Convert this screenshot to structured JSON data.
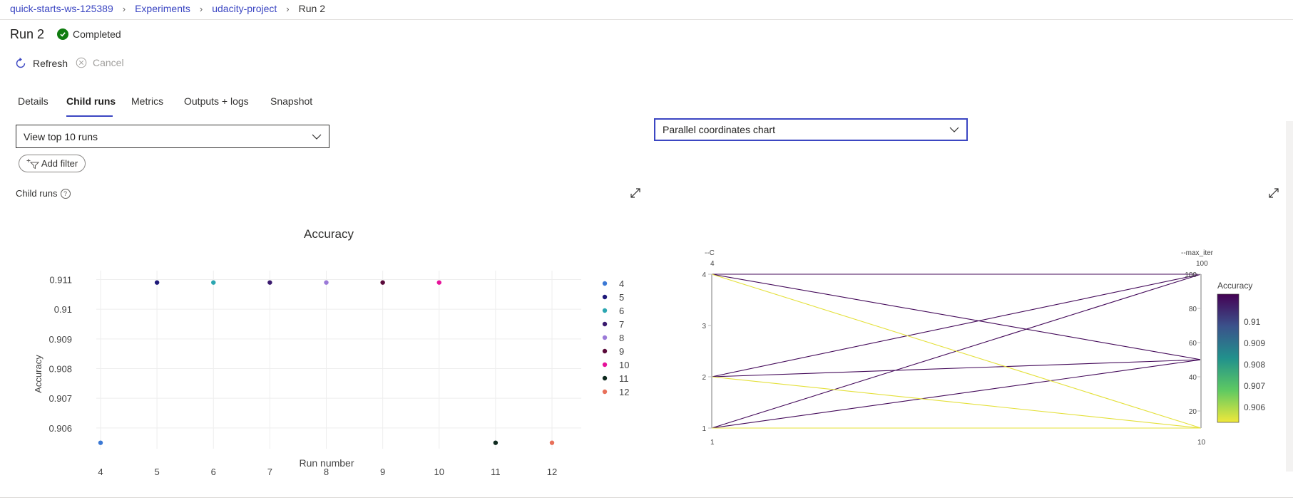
{
  "breadcrumb": {
    "items": [
      "quick-starts-ws-125389",
      "Experiments",
      "udacity-project"
    ],
    "current": "Run 2"
  },
  "run": {
    "title": "Run 2",
    "status": "Completed"
  },
  "commands": {
    "refresh": "Refresh",
    "cancel": "Cancel"
  },
  "tabs": [
    {
      "label": "Details"
    },
    {
      "label": "Child runs",
      "active": true
    },
    {
      "label": "Metrics"
    },
    {
      "label": "Outputs + logs"
    },
    {
      "label": "Snapshot"
    }
  ],
  "run_filter": {
    "selected": "View top 10 runs"
  },
  "chart_type_select": {
    "selected": "Parallel coordinates chart"
  },
  "add_filter_label": "Add filter",
  "child_runs_label": "Child runs",
  "help_glyph": "?",
  "colors": {
    "accent": "#3b46c2",
    "success": "#107c10"
  },
  "chart_data": [
    {
      "type": "scatter",
      "title": "Accuracy",
      "xlabel": "Run number",
      "ylabel": "Accuracy",
      "categories": [
        "4",
        "5",
        "6",
        "7",
        "8",
        "9",
        "10",
        "11",
        "12"
      ],
      "yticks": [
        "0.906",
        "0.907",
        "0.908",
        "0.909",
        "0.91",
        "0.911"
      ],
      "ylim": [
        0.9053,
        0.9113
      ],
      "grid": true,
      "legend_position": "right",
      "series": [
        {
          "name": "4",
          "x": "4",
          "y": 0.9055,
          "color": "#3a78d4"
        },
        {
          "name": "5",
          "x": "5",
          "y": 0.9109,
          "color": "#1f1a7a"
        },
        {
          "name": "6",
          "x": "6",
          "y": 0.9109,
          "color": "#2ba6b1"
        },
        {
          "name": "7",
          "x": "7",
          "y": 0.9109,
          "color": "#3a1a6e"
        },
        {
          "name": "8",
          "x": "8",
          "y": 0.9109,
          "color": "#9b7ad8"
        },
        {
          "name": "9",
          "x": "9",
          "y": 0.9109,
          "color": "#5a0a3a"
        },
        {
          "name": "10",
          "x": "10",
          "y": 0.9109,
          "color": "#e6129a"
        },
        {
          "name": "11",
          "x": "11",
          "y": 0.9055,
          "color": "#0f2a1f"
        },
        {
          "name": "12",
          "x": "12",
          "y": 0.9055,
          "color": "#e8705a"
        }
      ]
    },
    {
      "type": "parallel_coordinates",
      "axes": [
        {
          "name": "--C",
          "min": 1,
          "max": 4,
          "ticks": [
            1,
            2,
            3,
            4
          ],
          "min_label": "1",
          "max_label": "4"
        },
        {
          "name": "--max_iter",
          "min": 10,
          "max": 100,
          "ticks": [
            20,
            40,
            60,
            80,
            100
          ],
          "min_label": "10",
          "max_label": "100"
        }
      ],
      "color_metric": "Accuracy",
      "colorbar_ticks": [
        "0.906",
        "0.907",
        "0.908",
        "0.909",
        "0.91"
      ],
      "colorbar_range": [
        0.9053,
        0.9113
      ],
      "lines": [
        {
          "C": 4,
          "max_iter": 100,
          "accuracy": 0.9109
        },
        {
          "C": 4,
          "max_iter": 50,
          "accuracy": 0.9109
        },
        {
          "C": 2,
          "max_iter": 100,
          "accuracy": 0.9109
        },
        {
          "C": 2,
          "max_iter": 50,
          "accuracy": 0.9109
        },
        {
          "C": 1,
          "max_iter": 100,
          "accuracy": 0.9109
        },
        {
          "C": 1,
          "max_iter": 50,
          "accuracy": 0.9109
        },
        {
          "C": 4,
          "max_iter": 10,
          "accuracy": 0.9055
        },
        {
          "C": 2,
          "max_iter": 10,
          "accuracy": 0.9055
        },
        {
          "C": 1,
          "max_iter": 10,
          "accuracy": 0.9055
        }
      ]
    }
  ]
}
